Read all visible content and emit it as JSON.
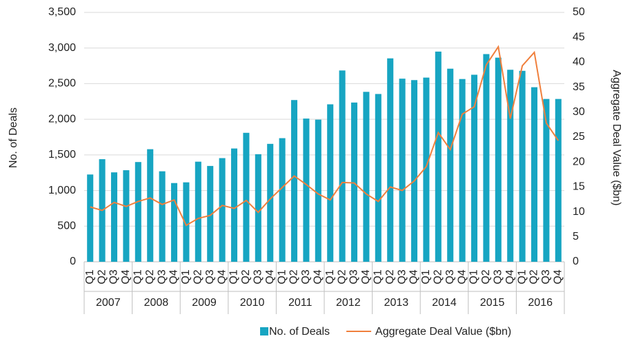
{
  "chart_data": {
    "type": "bar-line",
    "y_label": "No. of Deals",
    "y2_label": "Aggregate Deal Value ($bn)",
    "categories": [
      "Q1",
      "Q2",
      "Q3",
      "Q4",
      "Q1",
      "Q2",
      "Q3",
      "Q4",
      "Q1",
      "Q2",
      "Q3",
      "Q4",
      "Q1",
      "Q2",
      "Q3",
      "Q4",
      "Q1",
      "Q2",
      "Q3",
      "Q4",
      "Q1",
      "Q2",
      "Q3",
      "Q4",
      "Q1",
      "Q2",
      "Q3",
      "Q4",
      "Q1",
      "Q2",
      "Q3",
      "Q4",
      "Q1",
      "Q2",
      "Q3",
      "Q4",
      "Q1",
      "Q2",
      "Q3",
      "Q4"
    ],
    "category_groups": [
      "2007",
      "2008",
      "2009",
      "2010",
      "2011",
      "2012",
      "2013",
      "2014",
      "2015",
      "2016"
    ],
    "series": [
      {
        "name": "No. of Deals",
        "type": "bar",
        "color": "#17a5c2",
        "values": [
          1225,
          1440,
          1255,
          1285,
          1400,
          1580,
          1270,
          1105,
          1115,
          1405,
          1345,
          1455,
          1590,
          1810,
          1510,
          1655,
          1735,
          2270,
          2010,
          1995,
          2210,
          2685,
          2235,
          2385,
          2355,
          2855,
          2570,
          2550,
          2585,
          2950,
          2710,
          2565,
          2625,
          2915,
          2865,
          2695,
          2680,
          2450,
          2285,
          2285
        ]
      },
      {
        "name": "Aggregate Deal Value ($bn)",
        "type": "line",
        "axis": "y2",
        "color": "#f07f3c",
        "values": [
          11.0,
          10.3,
          11.9,
          11.1,
          12.1,
          12.8,
          11.5,
          12.4,
          7.3,
          8.7,
          9.3,
          11.3,
          10.7,
          12.3,
          9.9,
          12.6,
          14.9,
          17.2,
          15.5,
          13.6,
          12.4,
          15.9,
          15.8,
          13.6,
          12.1,
          15.0,
          14.3,
          16.2,
          19.1,
          25.9,
          22.5,
          29.6,
          31.1,
          39.5,
          43.1,
          28.7,
          39.3,
          42.0,
          27.8,
          24.3
        ]
      }
    ],
    "ylim": [
      0,
      3500
    ],
    "yticks": [
      0,
      500,
      {
        "value": 1000,
        "label": "1,000"
      },
      {
        "value": 1500,
        "label": "1,500"
      },
      {
        "value": 2000,
        "label": "2,000"
      },
      {
        "value": 2500,
        "label": "2,500"
      },
      {
        "value": 3000,
        "label": "3,000"
      },
      {
        "value": 3500,
        "label": "3,500"
      }
    ],
    "y2lim": [
      0,
      50
    ],
    "y2ticks": [
      0,
      5,
      10,
      15,
      20,
      25,
      30,
      35,
      40,
      45,
      50
    ],
    "grid": true,
    "legend": "bottom"
  }
}
